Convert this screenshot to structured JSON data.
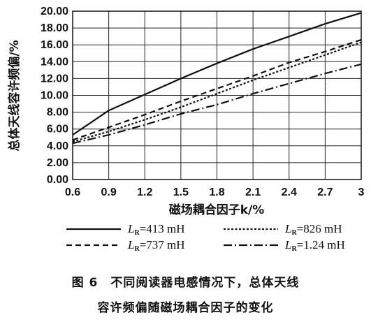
{
  "chart_data": {
    "type": "line",
    "xlabel": "磁场耦合因子k/%",
    "ylabel": "总体天线容许频偏/%",
    "xticks": [
      "0.6",
      "0.9",
      "1.2",
      "1.5",
      "1.8",
      "2.1",
      "2.4",
      "2.7",
      "3"
    ],
    "yticks": [
      "0.00",
      "2.00",
      "4.00",
      "6.00",
      "8.00",
      "10.00",
      "12.00",
      "14.00",
      "16.00",
      "18.00",
      "20.00"
    ],
    "xlim": [
      0.6,
      3.0
    ],
    "ylim": [
      0,
      20
    ],
    "grid": true,
    "legend_position": "bottom",
    "series": [
      {
        "name": "LR=413 mH",
        "label_main": "L",
        "label_sub": "R",
        "label_rest": "=413 mH",
        "dash": "solid",
        "x": [
          0.6,
          0.9,
          1.2,
          1.5,
          1.8,
          2.1,
          2.4,
          2.7,
          3.0
        ],
        "y": [
          5.3,
          8.2,
          10.1,
          12.0,
          13.8,
          15.5,
          17.0,
          18.5,
          19.8
        ]
      },
      {
        "name": "LR=826 mH",
        "label_main": "L",
        "label_sub": "R",
        "label_rest": "=826 mH",
        "dash": "dotted",
        "x": [
          0.6,
          0.9,
          1.2,
          1.5,
          1.8,
          2.1,
          2.4,
          2.7,
          3.0
        ],
        "y": [
          4.5,
          5.7,
          7.1,
          8.6,
          10.2,
          11.8,
          13.3,
          14.8,
          16.3
        ]
      },
      {
        "name": "LR=737 mH",
        "label_main": "L",
        "label_sub": "R",
        "label_rest": "=737 mH",
        "dash": "dashed",
        "x": [
          0.6,
          0.9,
          1.2,
          1.5,
          1.8,
          2.1,
          2.4,
          2.7,
          3.0
        ],
        "y": [
          4.7,
          6.2,
          7.7,
          9.3,
          10.8,
          12.3,
          13.9,
          15.2,
          16.6
        ]
      },
      {
        "name": "LR=1.24 mH",
        "label_main": "L",
        "label_sub": "R",
        "label_rest": "=1.24 mH",
        "dash": "dashdot",
        "x": [
          0.6,
          0.9,
          1.2,
          1.5,
          1.8,
          2.1,
          2.4,
          2.7,
          3.0
        ],
        "y": [
          4.3,
          5.3,
          6.5,
          7.8,
          8.9,
          10.2,
          11.4,
          12.6,
          13.7
        ]
      }
    ]
  },
  "caption": {
    "line1": "图 6　不同阅读器电感情况下，总体天线",
    "line2": "容许频偏随磁场耦合因子的变化"
  }
}
